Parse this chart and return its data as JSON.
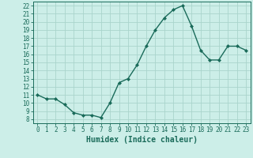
{
  "x": [
    0,
    1,
    2,
    3,
    4,
    5,
    6,
    7,
    8,
    9,
    10,
    11,
    12,
    13,
    14,
    15,
    16,
    17,
    18,
    19,
    20,
    21,
    22,
    23
  ],
  "y": [
    11.0,
    10.5,
    10.5,
    9.8,
    8.8,
    8.5,
    8.5,
    8.2,
    10.0,
    12.5,
    13.0,
    14.7,
    17.0,
    19.0,
    20.5,
    21.5,
    22.0,
    19.5,
    16.5,
    15.3,
    15.3,
    17.0,
    17.0,
    16.5
  ],
  "line_color": "#1a6b5a",
  "marker": "D",
  "marker_size": 2.0,
  "line_width": 1.0,
  "xlabel": "Humidex (Indice chaleur)",
  "xlim": [
    -0.5,
    23.5
  ],
  "ylim": [
    7.5,
    22.5
  ],
  "yticks": [
    8,
    9,
    10,
    11,
    12,
    13,
    14,
    15,
    16,
    17,
    18,
    19,
    20,
    21,
    22
  ],
  "xticks": [
    0,
    1,
    2,
    3,
    4,
    5,
    6,
    7,
    8,
    9,
    10,
    11,
    12,
    13,
    14,
    15,
    16,
    17,
    18,
    19,
    20,
    21,
    22,
    23
  ],
  "bg_color": "#cceee8",
  "grid_color": "#aad4cc",
  "tick_label_color": "#1a6b5a",
  "xlabel_color": "#1a6b5a",
  "xlabel_fontsize": 7.0,
  "tick_fontsize": 5.5,
  "tick_color": "#1a6b5a",
  "axis_color": "#1a6b5a"
}
